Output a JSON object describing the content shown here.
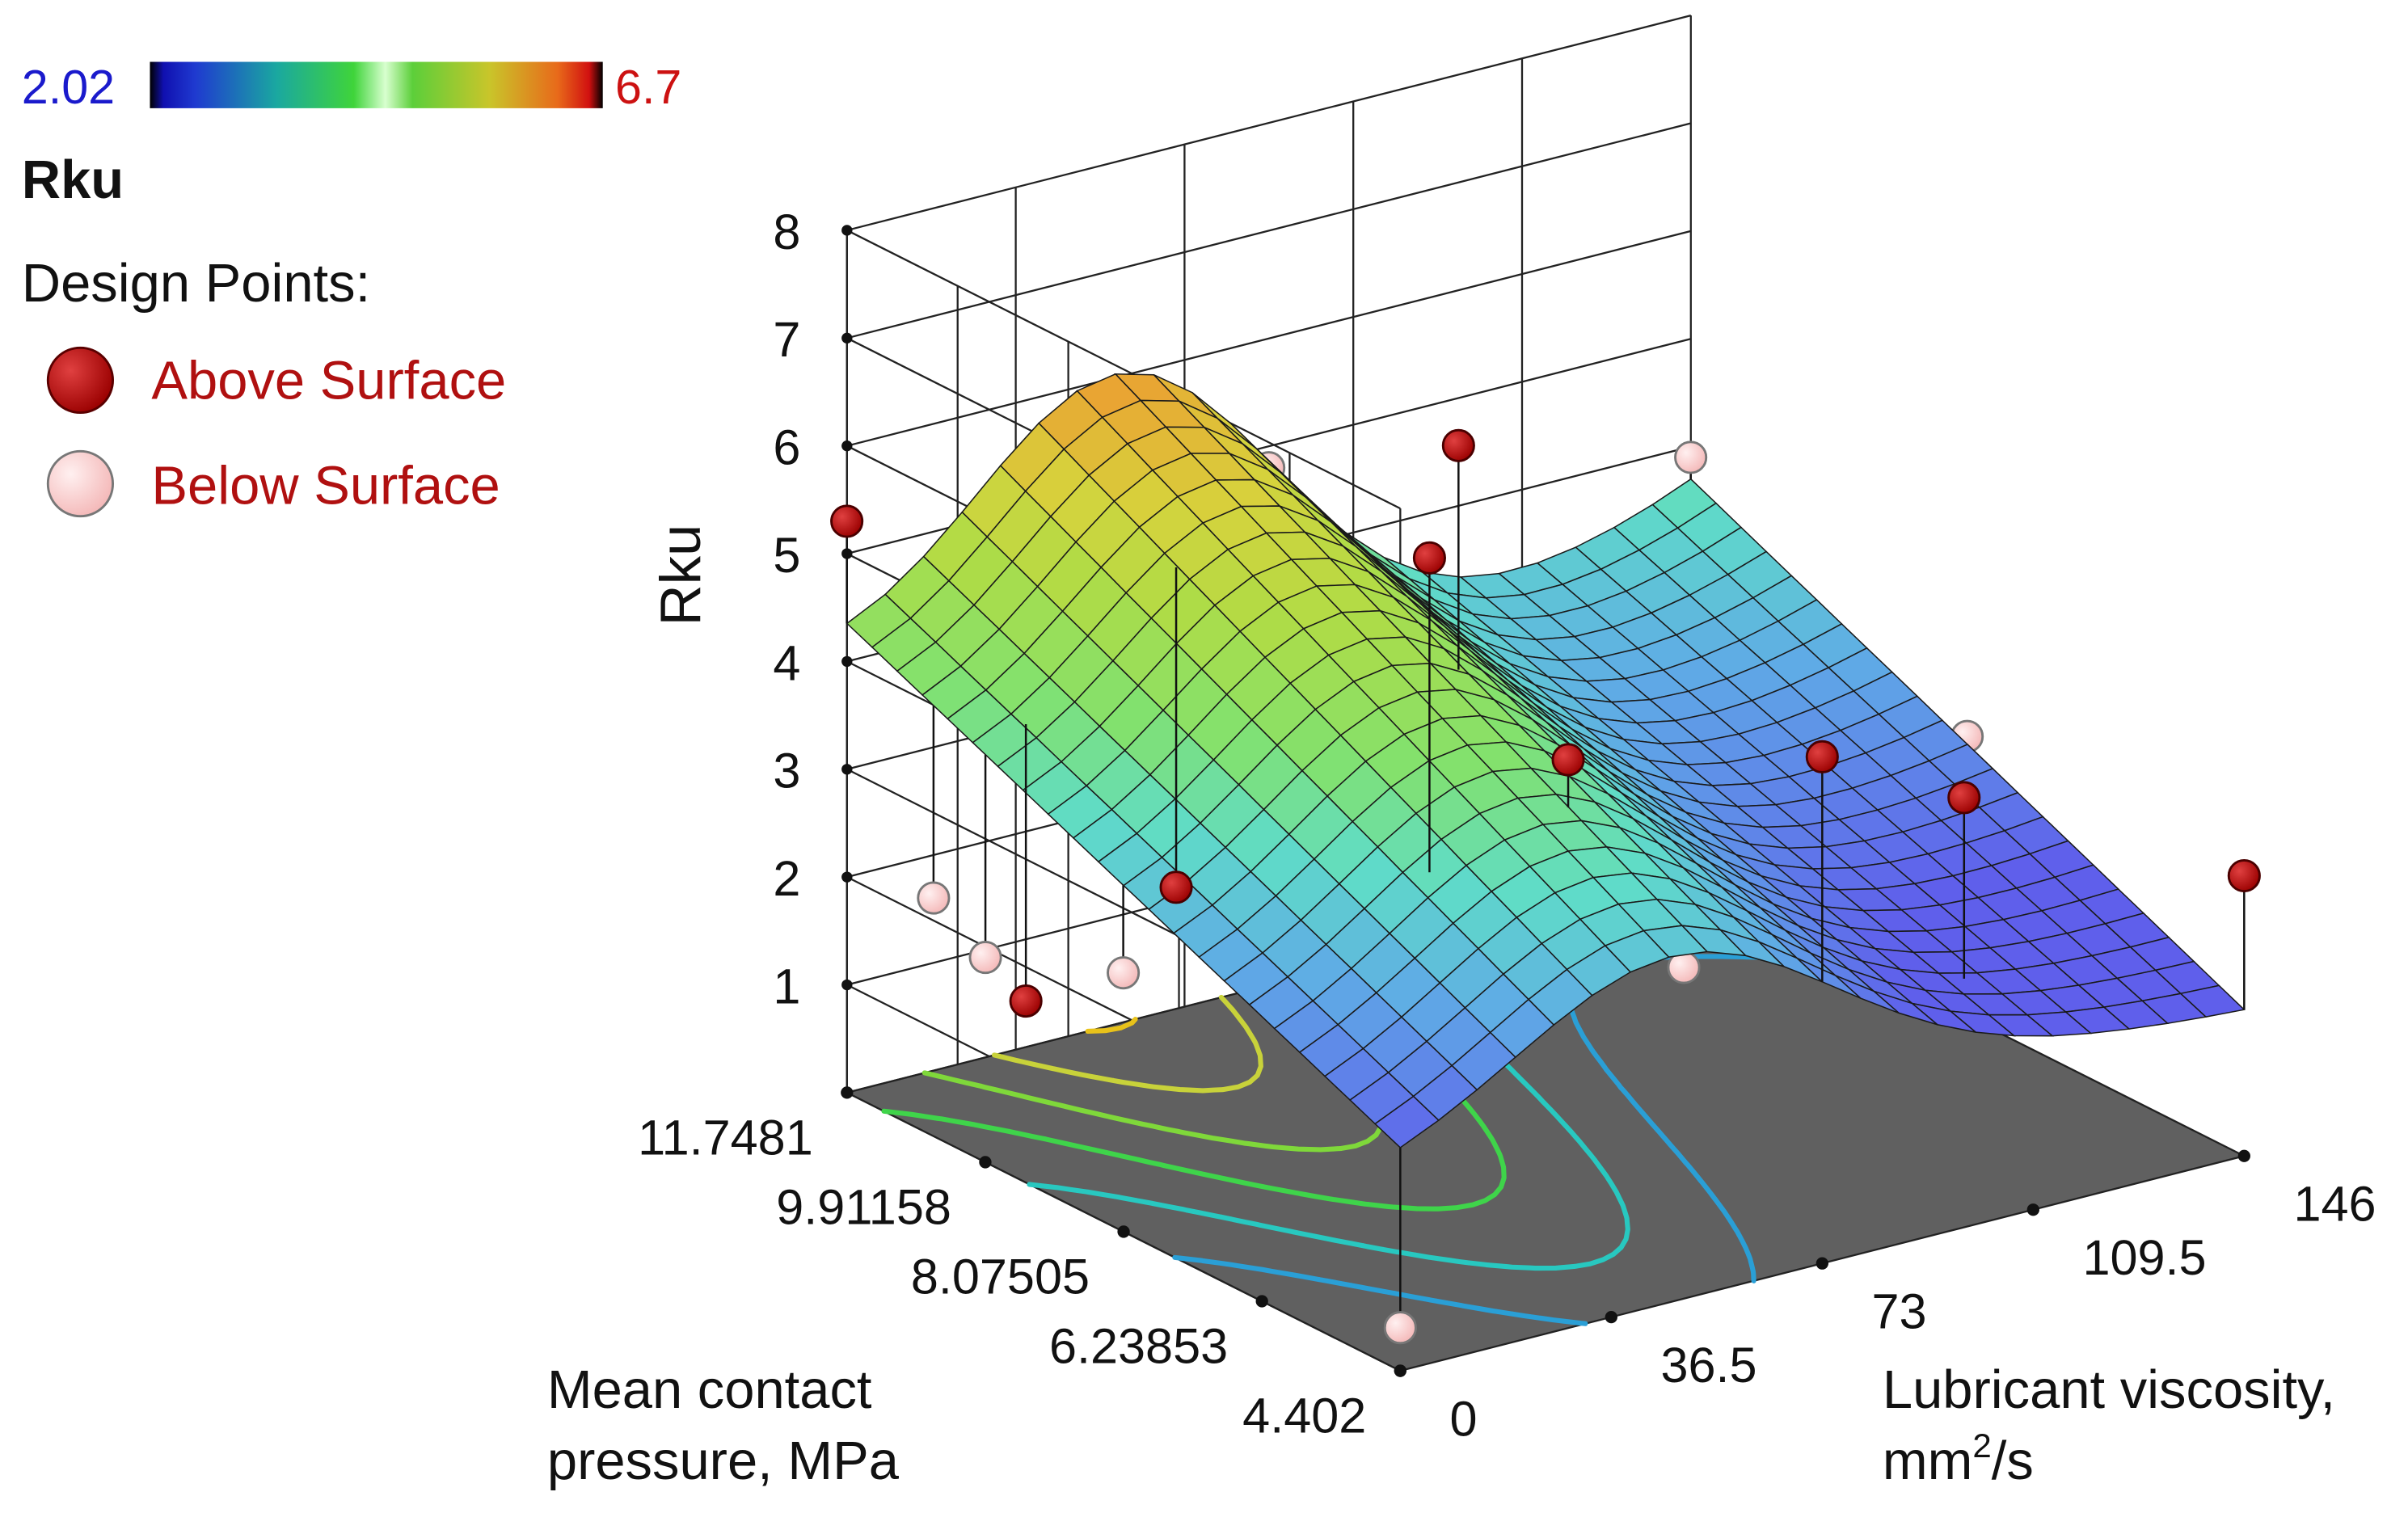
{
  "chart_data": {
    "type": "surface3d",
    "title": "",
    "zlabel": "Rku",
    "x_axis": {
      "label_line1": "Mean contact",
      "label_line2": "pressure, MPa",
      "ticks": [
        "11.7481",
        "9.91158",
        "8.07505",
        "6.23853",
        "4.402"
      ],
      "range": [
        4.402,
        11.7481
      ]
    },
    "y_axis": {
      "label_line1": "Lubricant viscosity,",
      "label_line2_pre": "mm",
      "label_line2_sup": "2",
      "label_line2_post": "/s",
      "ticks": [
        "0",
        "36.5",
        "73",
        "109.5",
        "146"
      ],
      "range": [
        0,
        146
      ]
    },
    "z_axis": {
      "ticks": [
        "1",
        "2",
        "3",
        "4",
        "5",
        "6",
        "7",
        "8"
      ],
      "range": [
        0,
        8
      ]
    },
    "colorbar": {
      "min_label": "2.02",
      "max_label": "6.7",
      "min_color": "#1a1acc",
      "max_color": "#cc1111"
    },
    "legend": {
      "variable": "Rku",
      "title": "Design Points:",
      "items": [
        {
          "label": "Above Surface",
          "color": "#b30000"
        },
        {
          "label": "Below Surface",
          "color": "#f8c4c4"
        }
      ]
    },
    "design_points_above": [
      {
        "pressure": 6.24,
        "viscosity": 29,
        "rku": 6.5
      },
      {
        "pressure": 11.75,
        "viscosity": 0,
        "rku": 5.3
      },
      {
        "pressure": 8.08,
        "viscosity": 58,
        "rku": 6.5
      },
      {
        "pressure": 6.24,
        "viscosity": 53,
        "rku": 4.3
      },
      {
        "pressure": 4.402,
        "viscosity": 73,
        "rku": 4.7
      },
      {
        "pressure": 4.402,
        "viscosity": 146,
        "rku": 2.6
      },
      {
        "pressure": 9.91,
        "viscosity": 7,
        "rku": 1.4
      },
      {
        "pressure": 9.91,
        "viscosity": 33,
        "rku": 2.1
      },
      {
        "pressure": 5.32,
        "viscosity": 109.5,
        "rku": 3.5
      }
    ],
    "design_points_below": [
      {
        "pressure": 4.402,
        "viscosity": 0,
        "rku": 0.4
      },
      {
        "pressure": 11.75,
        "viscosity": 73,
        "rku": 4.8
      },
      {
        "pressure": 11.75,
        "viscosity": 146,
        "rku": 3.9
      },
      {
        "pressure": 8.08,
        "viscosity": 0,
        "rku": 2.4
      },
      {
        "pressure": 11.75,
        "viscosity": 15,
        "rku": 1.6
      },
      {
        "pressure": 9.91,
        "viscosity": 0,
        "rku": 1.9
      },
      {
        "pressure": 8.08,
        "viscosity": 146,
        "rku": 2.6
      },
      {
        "pressure": 6.24,
        "viscosity": 73,
        "rku": 2.1
      }
    ]
  }
}
